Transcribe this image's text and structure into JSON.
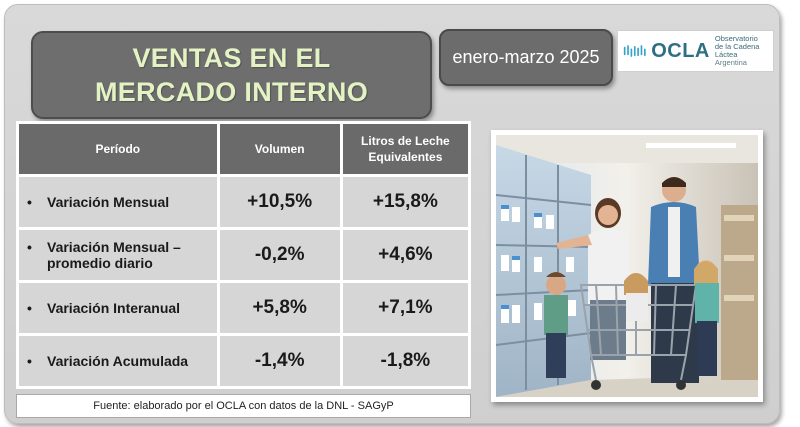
{
  "title": "VENTAS EN EL MERCADO INTERNO",
  "date_range": "enero-marzo 2025",
  "logo": {
    "name": "OCLA",
    "subtitle_line1": "Observatorio",
    "subtitle_line2": "de la Cadena Láctea",
    "subtitle_line3": "Argentina"
  },
  "table": {
    "headers": [
      "Período",
      "Volumen",
      "Litros de Leche Equivalentes"
    ],
    "rows": [
      {
        "label": "Variación Mensual",
        "volumen": "+10,5%",
        "litros": "+15,8%"
      },
      {
        "label": "Variación Mensual – promedio diario",
        "volumen": "-0,2%",
        "litros": "+4,6%"
      },
      {
        "label": "Variación Interanual",
        "volumen": "+5,8%",
        "litros": "+7,1%"
      },
      {
        "label": "Variación Acumulada",
        "volumen": "-1,4%",
        "litros": "-1,8%"
      }
    ]
  },
  "source": "Fuente: elaborado por el OCLA con datos de la DNL - SAGyP",
  "photo": {
    "subject": "family-shopping-dairy-aisle"
  },
  "colors": {
    "title_text": "#e3f3c4",
    "box_dark": "#6e6e6e",
    "cell_bg": "#d6d6d6",
    "logo_teal": "#2f6f84"
  }
}
